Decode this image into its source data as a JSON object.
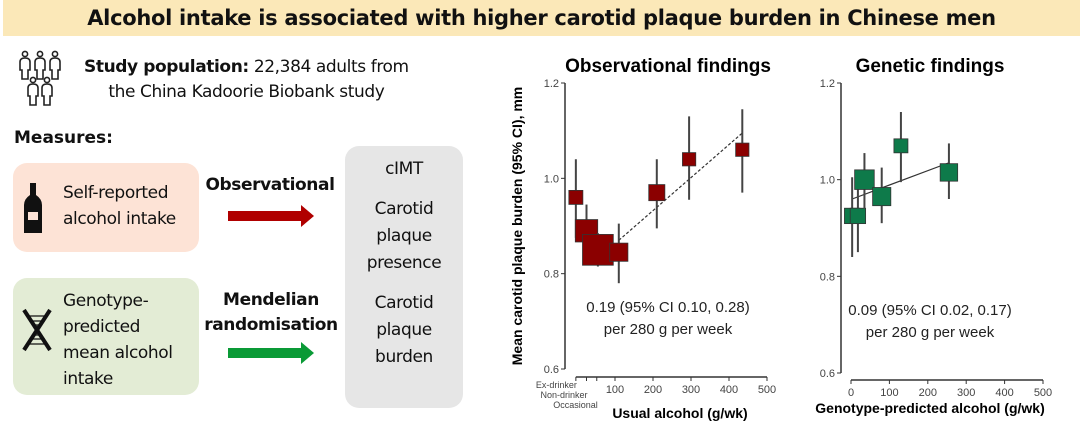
{
  "title": "Alcohol intake is associated with higher carotid plaque burden in Chinese men",
  "population": {
    "label": "Study population:",
    "text1": "22,384 adults from",
    "text2": "the China Kadoorie Biobank study",
    "icon": "people-group-icon"
  },
  "measures_label": "Measures:",
  "exposures": [
    {
      "lines": [
        "Self-reported",
        "alcohol intake"
      ],
      "icon": "bottle-icon",
      "color": "#fde3d6"
    },
    {
      "lines": [
        "Genotype-",
        "predicted",
        "mean alcohol",
        "intake"
      ],
      "icon": "dna-icon",
      "color": "#e3ecd5"
    }
  ],
  "methods": [
    {
      "lines": [
        "Observational"
      ],
      "arrow_color": "#b00000"
    },
    {
      "lines": [
        "Mendelian",
        "randomisation"
      ],
      "arrow_color": "#0a9a36"
    }
  ],
  "outcomes": [
    "cIMT",
    "Carotid plaque presence",
    "Carotid plaque burden"
  ],
  "chart_data": [
    {
      "type": "scatter",
      "title": "Observational findings",
      "ylabel": "Mean carotid plaque burden (95% CI), mm",
      "xlabel": "Usual alcohol (g/wk)",
      "ylim": [
        0.6,
        1.2
      ],
      "yticks": [
        0.6,
        0.8,
        1.0,
        1.2
      ],
      "xlim": [
        0,
        500
      ],
      "xticks": [
        100,
        200,
        300,
        400,
        500
      ],
      "category_ticks": [
        {
          "label": "Ex-drinker",
          "x": -3
        },
        {
          "label": "Non-drinker",
          "x": 25
        },
        {
          "label": "Occasional",
          "x": 52
        }
      ],
      "color": "#8b0000",
      "line_style": "dashed",
      "points": [
        {
          "x": -3,
          "y": 0.96,
          "lo": 0.875,
          "hi": 1.04,
          "size": 1
        },
        {
          "x": 25,
          "y": 0.89,
          "lo": 0.84,
          "hi": 0.945,
          "size": 1.6
        },
        {
          "x": 55,
          "y": 0.85,
          "lo": 0.815,
          "hi": 0.885,
          "size": 2.2
        },
        {
          "x": 110,
          "y": 0.845,
          "lo": 0.78,
          "hi": 0.905,
          "size": 1.3
        },
        {
          "x": 210,
          "y": 0.97,
          "lo": 0.895,
          "hi": 1.04,
          "size": 1.15
        },
        {
          "x": 295,
          "y": 1.04,
          "lo": 0.955,
          "hi": 1.13,
          "size": 0.95
        },
        {
          "x": 435,
          "y": 1.06,
          "lo": 0.97,
          "hi": 1.145,
          "size": 0.95
        }
      ],
      "trend": [
        [
          110,
          0.87
        ],
        [
          435,
          1.095
        ]
      ],
      "annotation": [
        "0.19 (95% CI 0.10, 0.28)",
        "per 280 g per week"
      ]
    },
    {
      "type": "scatter",
      "title": "Genetic findings",
      "ylabel": "",
      "xlabel": "Genotype-predicted alcohol (g/wk)",
      "ylim": [
        0.6,
        1.2
      ],
      "yticks": [
        0.6,
        0.8,
        1.0,
        1.2
      ],
      "xlim": [
        0,
        500
      ],
      "xticks": [
        0,
        100,
        200,
        300,
        400,
        500
      ],
      "category_ticks": [],
      "color": "#0e7a4a",
      "line_style": "solid",
      "points": [
        {
          "x": 3,
          "y": 0.925,
          "lo": 0.84,
          "hi": 1.005,
          "size": 1.1
        },
        {
          "x": 18,
          "y": 0.925,
          "lo": 0.85,
          "hi": 0.99,
          "size": 1.1
        },
        {
          "x": 35,
          "y": 1.0,
          "lo": 0.94,
          "hi": 1.055,
          "size": 1.4
        },
        {
          "x": 80,
          "y": 0.965,
          "lo": 0.91,
          "hi": 1.025,
          "size": 1.3
        },
        {
          "x": 130,
          "y": 1.07,
          "lo": 0.995,
          "hi": 1.14,
          "size": 1.0
        },
        {
          "x": 255,
          "y": 1.015,
          "lo": 0.96,
          "hi": 1.075,
          "size": 1.25
        }
      ],
      "trend": [
        [
          3,
          0.96
        ],
        [
          255,
          1.035
        ]
      ],
      "annotation": [
        "0.09 (95% CI 0.02, 0.17)",
        "per 280 g per week"
      ]
    }
  ]
}
